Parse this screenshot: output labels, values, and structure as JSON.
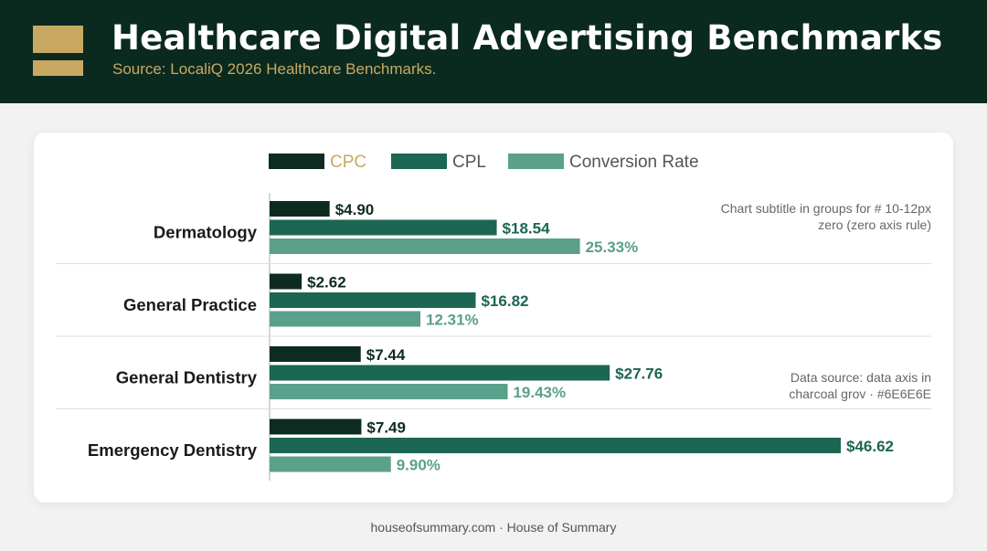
{
  "header": {
    "title": "Healthcare Digital Advertising Benchmarks",
    "subtitle": "Source: LocaliQ 2026 Healthcare Benchmarks."
  },
  "footer": {
    "text": "houseofsummary.com · House of Summary"
  },
  "notes": {
    "top_line1": "Chart subtitle in groups for # 10-12px",
    "top_line2": "zero (zero axis rule)",
    "bottom_line1": "Data source: data axis in",
    "bottom_line2": "charcoal grov · #6E6E6E"
  },
  "colors": {
    "header_bg": "#0b2a1f",
    "accent_gold": "#c9a962",
    "cpc": "#0e2b22",
    "cpl": "#1c6654",
    "conversion_rate": "#5aa08a"
  },
  "chart_data": {
    "type": "bar",
    "orientation": "horizontal",
    "categories": [
      "Dermatology",
      "General Practice",
      "General Dentistry",
      "Emergency Dentistry"
    ],
    "series": [
      {
        "name": "CPC",
        "values": [
          4.9,
          2.62,
          7.44,
          7.49
        ],
        "labels": [
          "$4.90",
          "$2.62",
          "$7.44",
          "$7.49"
        ]
      },
      {
        "name": "CPL",
        "values": [
          18.54,
          16.82,
          27.76,
          46.62
        ],
        "labels": [
          "$18.54",
          "$16.82",
          "$27.76",
          "$46.62"
        ]
      },
      {
        "name": "Conversion Rate",
        "values": [
          25.33,
          12.31,
          19.43,
          9.9
        ],
        "labels": [
          "25.33%",
          "12.31%",
          "19.43%",
          "9.90%"
        ]
      }
    ],
    "legend": "top-center",
    "grid": false
  }
}
